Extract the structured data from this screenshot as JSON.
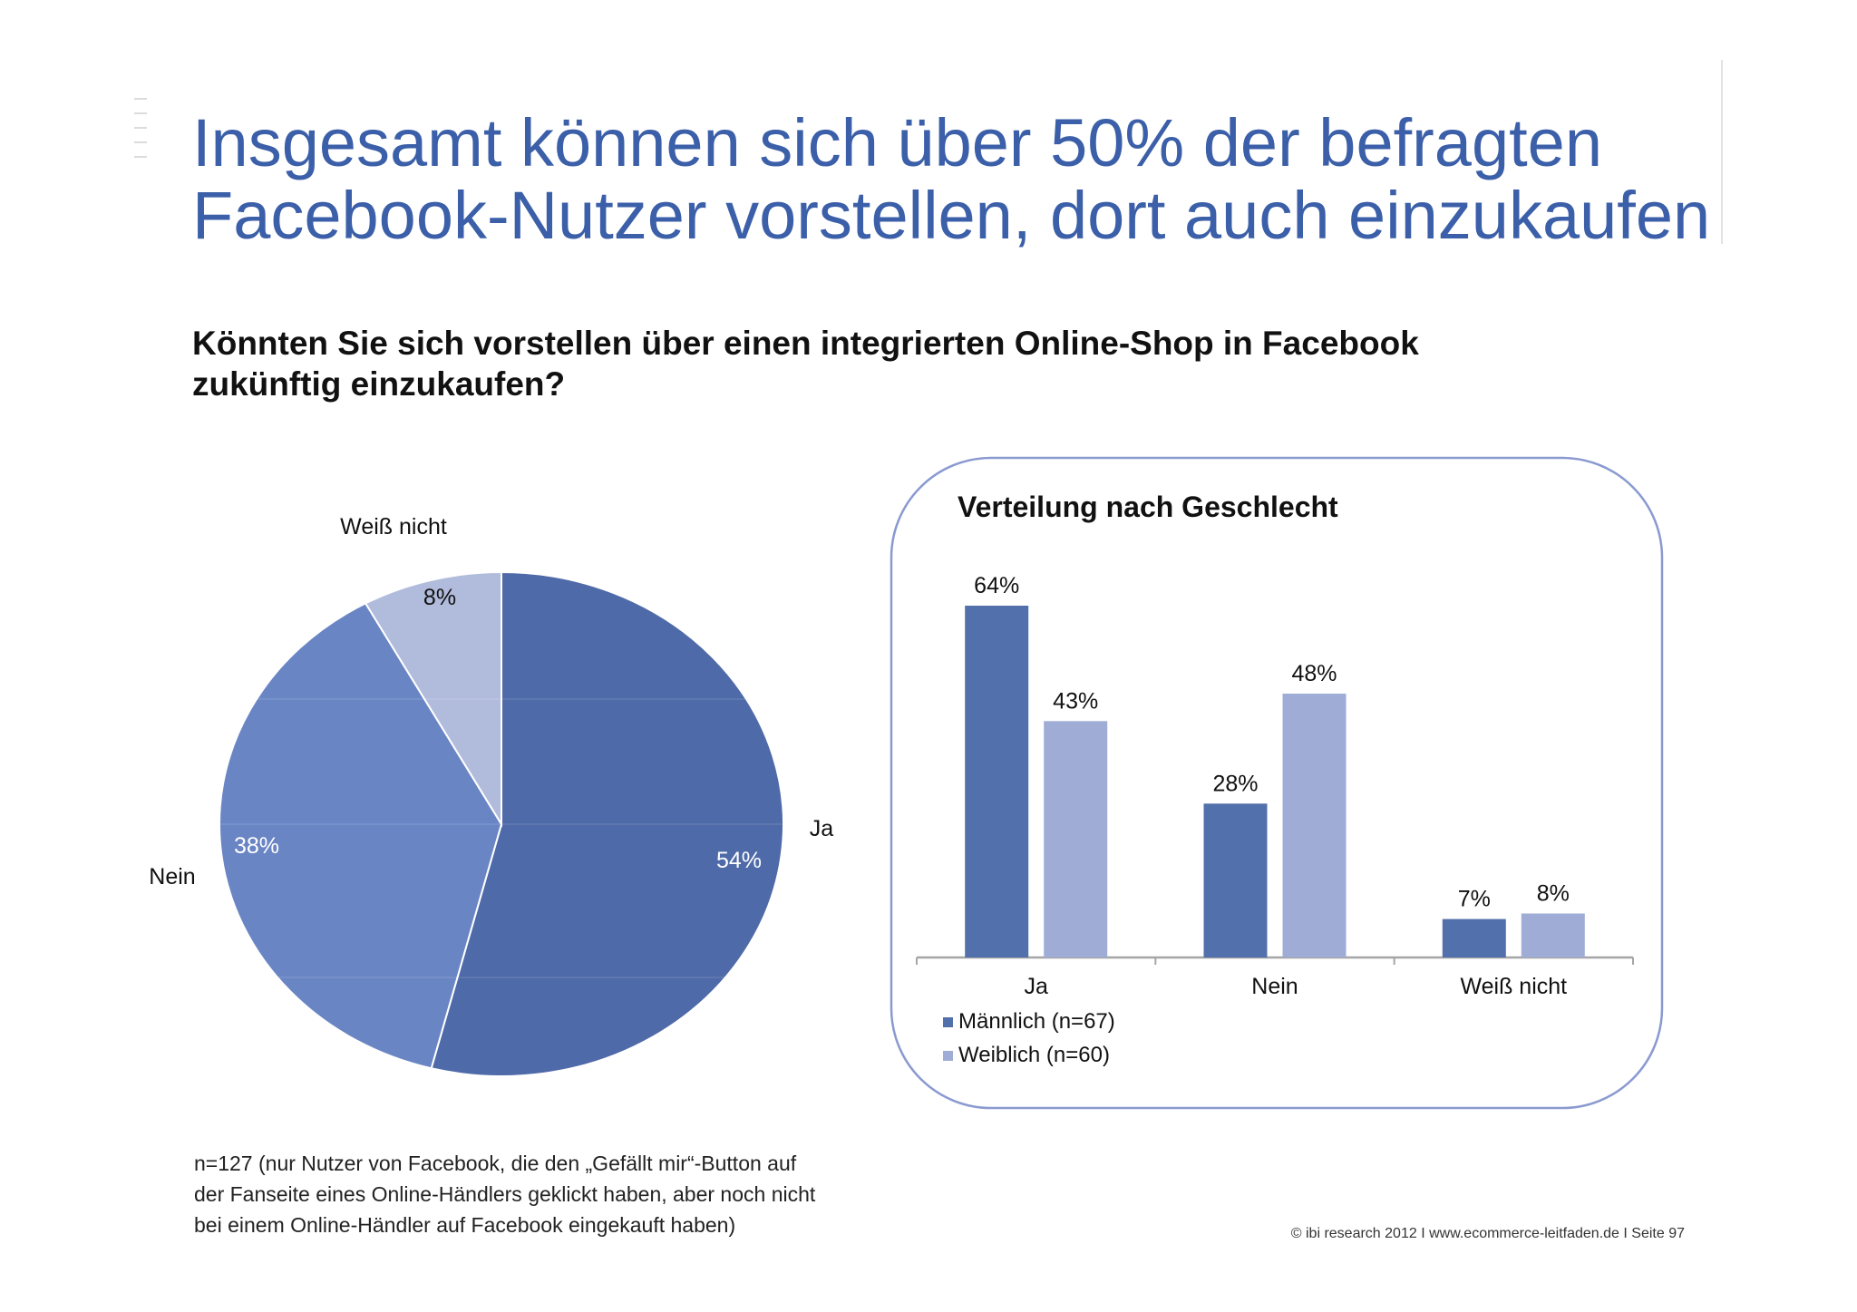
{
  "slide": {
    "title_lines": [
      "Insgesamt können sich über 50% der befragten",
      "Facebook-Nutzer vorstellen, dort auch einzukaufen"
    ],
    "question_lines": [
      "Könnten Sie sich vorstellen über einen integrierten Online-Shop in Facebook",
      "zukünftig einzukaufen?"
    ],
    "footnote_lines": [
      "n=127 (nur Nutzer von Facebook, die den „Gefällt mir“-Button auf",
      "der Fanseite eines Online-Händlers geklickt haben, aber noch nicht",
      "bei einem Online-Händler auf Facebook eingekauft haben)"
    ],
    "source": "© ibi research 2012 I www.ecommerce-leitfaden.de I Seite 97"
  },
  "colors": {
    "title": "#3b5fa8",
    "ja": "#4f6aa8",
    "nein": "#6a85c4",
    "weiss_nicht": "#b1bcdc",
    "maennlich": "#5270ab",
    "weiblich": "#9fadd6",
    "panel_border": "#8a9ad0",
    "axis": "#a5a5a5"
  },
  "chart_data": [
    {
      "type": "pie",
      "title": "",
      "slices": [
        {
          "label": "Ja",
          "value": 54,
          "display": "54%",
          "color": "#4f6aa8"
        },
        {
          "label": "Nein",
          "value": 38,
          "display": "38%",
          "color": "#6a85c4"
        },
        {
          "label": "Weiß nicht",
          "value": 8,
          "display": "8%",
          "color": "#b1bcdc"
        }
      ],
      "start_angle_deg": 0,
      "direction": "clockwise"
    },
    {
      "type": "bar",
      "title": "Verteilung nach Geschlecht",
      "categories": [
        "Ja",
        "Nein",
        "Weiß nicht"
      ],
      "series": [
        {
          "name": "Männlich (n=67)",
          "values": [
            64,
            28,
            7
          ],
          "color": "#5270ab"
        },
        {
          "name": "Weiblich (n=60)",
          "values": [
            43,
            48,
            8
          ],
          "color": "#9fadd6"
        }
      ],
      "value_suffix": "%",
      "ylim": [
        0,
        70
      ],
      "grid": false,
      "legend": "bottom-left"
    }
  ]
}
